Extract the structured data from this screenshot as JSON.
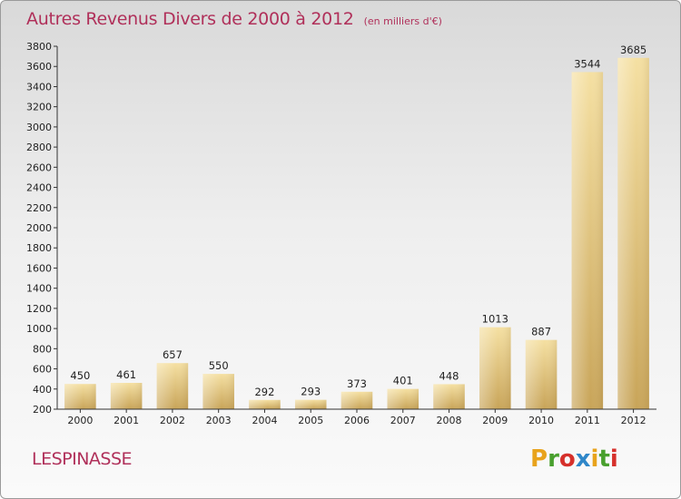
{
  "header": {
    "title": "Autres Revenus Divers de 2000 à 2012",
    "unit": "(en milliers d'€)"
  },
  "footer": {
    "commune": "LESPINASSE",
    "logo_letters": [
      "P",
      "r",
      "o",
      "x",
      "i",
      "t",
      "i"
    ],
    "logo_colors": [
      "#e8a31c",
      "#49a02e",
      "#d6302b",
      "#2f87c9",
      "#e8a31c",
      "#49a02e",
      "#d6302b"
    ]
  },
  "colors": {
    "title": "#b0305a",
    "bar_light": "#f5e0a2",
    "bar_dark": "#c8a458"
  },
  "chart_data": {
    "type": "bar",
    "categories": [
      "2000",
      "2001",
      "2002",
      "2003",
      "2004",
      "2005",
      "2006",
      "2007",
      "2008",
      "2009",
      "2010",
      "2011",
      "2012"
    ],
    "values": [
      450,
      461,
      657,
      550,
      292,
      293,
      373,
      401,
      448,
      1013,
      887,
      3544,
      3685
    ],
    "data_labels": [
      "450",
      "461",
      "657",
      "550",
      "292",
      "293",
      "373",
      "401",
      "448",
      "1013",
      "887",
      "3544",
      "3685"
    ],
    "yticks": [
      200,
      400,
      600,
      800,
      1000,
      1200,
      1400,
      1600,
      1800,
      2000,
      2200,
      2400,
      2600,
      2800,
      3000,
      3200,
      3400,
      3600,
      3800
    ],
    "ylim": [
      200,
      3800
    ],
    "grid": false
  }
}
